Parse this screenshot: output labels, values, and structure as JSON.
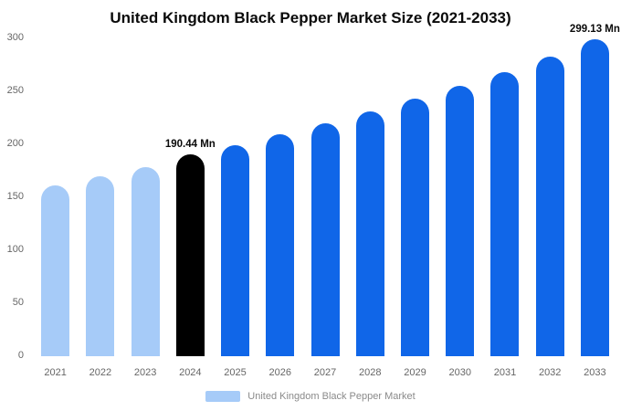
{
  "title": "United Kingdom Black Pepper Market Size (2021-2033)",
  "legend": {
    "label": "United Kingdom Black Pepper Market",
    "swatch_color": "#a6cbf8"
  },
  "colors": {
    "historical_bar": "#a6cbf8",
    "base_year_bar": "#000000",
    "forecast_bar": "#1066e8",
    "axis_text": "#666666",
    "title_text": "#0a0a0a"
  },
  "chart_data": {
    "type": "bar",
    "title": "United Kingdom Black Pepper Market Size (2021-2033)",
    "categories": [
      "2021",
      "2022",
      "2023",
      "2024",
      "2025",
      "2026",
      "2027",
      "2028",
      "2029",
      "2030",
      "2031",
      "2032",
      "2033"
    ],
    "values": [
      161,
      170,
      178.5,
      190.44,
      199.5,
      209.5,
      220,
      231,
      243,
      255.5,
      268,
      283,
      299.13
    ],
    "unit": "Mn",
    "bar_colors": [
      "#a6cbf8",
      "#a6cbf8",
      "#a6cbf8",
      "#000000",
      "#1066e8",
      "#1066e8",
      "#1066e8",
      "#1066e8",
      "#1066e8",
      "#1066e8",
      "#1066e8",
      "#1066e8",
      "#1066e8"
    ],
    "annotations": [
      {
        "category": "2024",
        "text": "190.44 Mn"
      },
      {
        "category": "2033",
        "text": "299.13 Mn"
      }
    ],
    "xlabel": "",
    "ylabel": "",
    "ylim": [
      0,
      300
    ],
    "yticks": [
      0,
      50,
      100,
      150,
      200,
      250,
      300
    ],
    "grid": false,
    "legend_position": "bottom"
  }
}
